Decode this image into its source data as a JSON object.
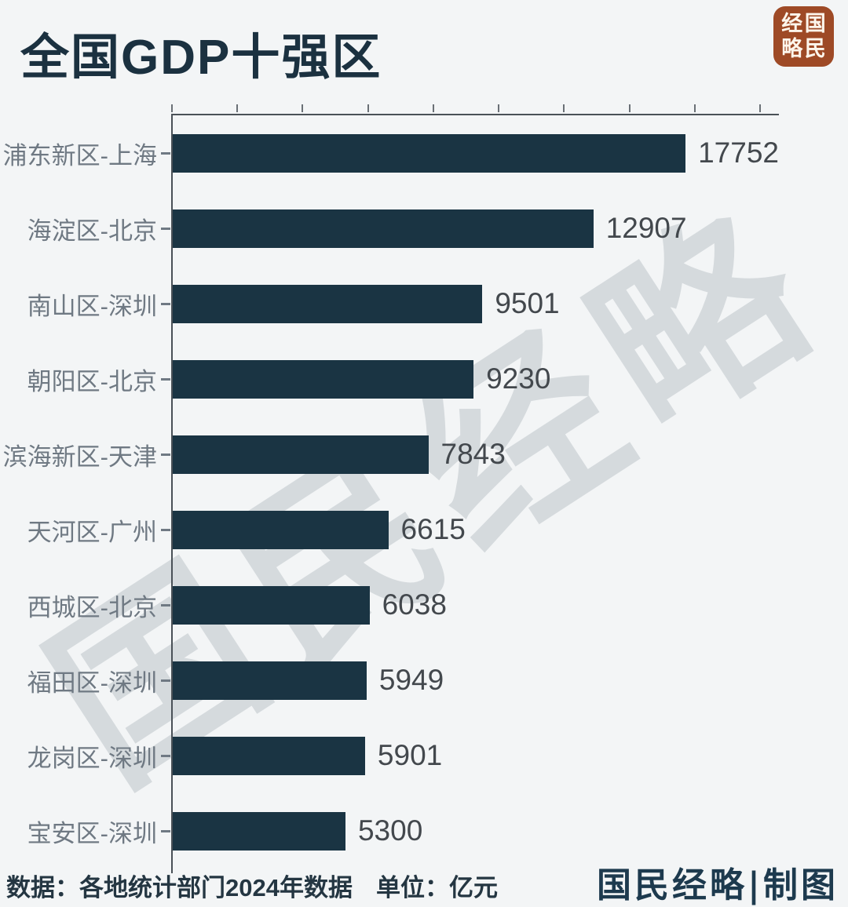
{
  "page": {
    "background_color": "#f3f5f6"
  },
  "header": {
    "title": "全国GDP十强区",
    "title_color": "#1b3140",
    "logo": {
      "name": "国民经略",
      "chars": [
        "国",
        "民",
        "经",
        "略"
      ],
      "bg_color": "#9e4a26",
      "text_color": "#fdf6ec"
    }
  },
  "watermark": {
    "text": "国民经略",
    "color": "#b2bac0"
  },
  "chart_data": {
    "type": "bar",
    "orientation": "horizontal",
    "title": "全国GDP十强区",
    "categories": [
      "浦东新区-上海",
      "海淀区-北京",
      "南山区-深圳",
      "朝阳区-北京",
      "滨海新区-天津",
      "天河区-广州",
      "西城区-北京",
      "福田区-深圳",
      "龙岗区-深圳",
      "宝安区-深圳"
    ],
    "values": [
      17752,
      12907,
      9501,
      9230,
      7843,
      6615,
      6038,
      5949,
      5901,
      5300
    ],
    "unit": "亿元",
    "xlabel": "",
    "ylabel": "",
    "xlim": [
      0,
      18600
    ],
    "x_tick_interval": 2000,
    "x_tick_labels_visible": false,
    "grid": false,
    "legend": "none",
    "bar_color": "#1a3443",
    "value_label_color": "#43484d",
    "category_label_color": "#6f7983"
  },
  "footer": {
    "source": "数据：各地统计部门2024年数据",
    "unit_label": "单位：亿元",
    "credit": "国民经略|制图"
  }
}
